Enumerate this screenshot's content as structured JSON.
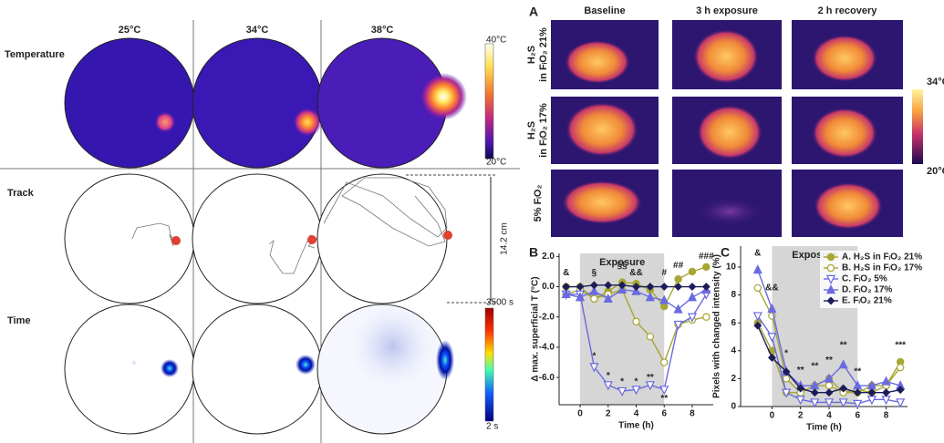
{
  "left": {
    "columns": [
      "25°C",
      "34°C",
      "38°C"
    ],
    "rows": [
      "Temperature",
      "Track",
      "Time"
    ],
    "temp_scale": {
      "max": "40°C",
      "min": "20°C"
    },
    "time_scale": {
      "max": "3500 s",
      "min": "2 s"
    },
    "scale_bar": "14.2 cm"
  },
  "panel_a": {
    "letter": "A",
    "columns": [
      "Baseline",
      "3 h exposure",
      "2 h recovery"
    ],
    "rows": [
      [
        "H₂S",
        "in FᵢO₂ 21%"
      ],
      [
        "H₂S",
        "in FᵢO₂ 17%"
      ],
      [
        "5% FᵢO₂"
      ]
    ],
    "scale": {
      "max": "34°C",
      "min": "20°C"
    }
  },
  "chart_data": [
    {
      "type": "line",
      "letter": "B",
      "ylabel": "Δ max. superficial T (°C)",
      "xlabel": "Time (h)",
      "shade": {
        "from": 0,
        "to": 6,
        "label": "Exposure"
      },
      "x": [
        -1,
        0,
        1,
        2,
        3,
        4,
        5,
        6,
        7,
        8,
        9
      ],
      "xlim": [
        -1.5,
        9.5
      ],
      "xticks": [
        0,
        2,
        4,
        6,
        8
      ],
      "ylim": [
        -7.8,
        2.2
      ],
      "yticks": [
        {
          "value": 2,
          "label": "2.0"
        },
        {
          "value": 0,
          "label": "0.0"
        },
        {
          "value": -2,
          "label": "-2.0"
        },
        {
          "value": -4,
          "label": "-4.0"
        },
        {
          "value": -6,
          "label": "-6.0"
        }
      ],
      "series": [
        {
          "color": "#a6a634",
          "marker": "circle",
          "values": [
            0,
            0,
            -0.8,
            -0.3,
            0.3,
            0.2,
            -0.2,
            -1.3,
            0.5,
            1,
            1.3
          ]
        },
        {
          "color": "#a6a634",
          "marker": "circle-open",
          "values": [
            -0.5,
            -0.2,
            -0.8,
            -0.5,
            -0.2,
            -2.3,
            -3.3,
            -5,
            -2.5,
            -2.2,
            -2
          ]
        },
        {
          "color": "#6a6ae0",
          "marker": "triangle-down-open",
          "values": [
            -0.5,
            -0.5,
            -5.3,
            -6.5,
            -6.9,
            -6.8,
            -6.5,
            -6.8,
            -2.5,
            -2,
            -0.5
          ]
        },
        {
          "color": "#6a6ae0",
          "marker": "triangle",
          "values": [
            -0.5,
            -0.7,
            -0.3,
            -0.8,
            -0.2,
            -0.3,
            -0.7,
            -0.9,
            -1.5,
            -0.7,
            -0.2
          ]
        },
        {
          "color": "#1c1c5a",
          "marker": "diamond",
          "values": [
            0,
            0,
            0.1,
            0.1,
            0.1,
            0,
            0,
            0,
            0,
            0,
            0
          ]
        }
      ],
      "annotations": [
        {
          "text": "&",
          "x": -1,
          "y": 0.9
        },
        {
          "text": "§",
          "x": 1,
          "y": 0.9
        },
        {
          "text": "§§",
          "x": 3,
          "y": 1.4
        },
        {
          "text": "&&",
          "x": 4,
          "y": 0.9
        },
        {
          "text": "#",
          "x": 6,
          "y": 0.9
        },
        {
          "text": "##",
          "x": 7,
          "y": 1.4
        },
        {
          "text": "###",
          "x": 9,
          "y": 2
        },
        {
          "text": "*",
          "x": 1,
          "y": -4.6
        },
        {
          "text": "*",
          "x": 2,
          "y": -5.9
        },
        {
          "text": "*",
          "x": 3,
          "y": -6.3
        },
        {
          "text": "*",
          "x": 4,
          "y": -6.3
        },
        {
          "text": "**",
          "x": 5,
          "y": -6
        },
        {
          "text": "**",
          "x": 6,
          "y": -7.4
        }
      ]
    },
    {
      "type": "line",
      "letter": "C",
      "ylabel": "Pixels with changed intensity (%)",
      "xlabel": "Time (h)",
      "shade": {
        "from": 0,
        "to": 6,
        "label": "Exposure"
      },
      "x": [
        -1,
        0,
        1,
        2,
        3,
        4,
        5,
        6,
        7,
        8,
        9
      ],
      "xlim": [
        -2.2,
        9.5
      ],
      "xticks": [
        0,
        2,
        4,
        6,
        8
      ],
      "ylim": [
        0,
        11.5
      ],
      "yticks": [
        0,
        2,
        4,
        6,
        8,
        10
      ],
      "series": [
        {
          "name": "A. H₂S in FᵢO₂ 21%",
          "color": "#a6a634",
          "marker": "circle",
          "values": [
            6,
            4,
            1,
            1,
            1.5,
            2,
            1,
            1,
            1.5,
            1.5,
            3.2
          ]
        },
        {
          "name": "B. H₂S in FᵢO₂ 17%",
          "color": "#a6a634",
          "marker": "circle-open",
          "values": [
            8.5,
            6.5,
            2,
            1,
            1.5,
            1.5,
            1,
            1.2,
            1,
            1.5,
            2.8
          ]
        },
        {
          "name": "C. FᵢO₂ 5%",
          "color": "#6a6ae0",
          "marker": "triangle-down-open",
          "values": [
            6.5,
            5,
            1,
            0.5,
            0.3,
            0.3,
            0.3,
            0.2,
            0.5,
            0.5,
            0.3
          ]
        },
        {
          "name": "D. FᵢO₂ 17%",
          "color": "#6a6ae0",
          "marker": "triangle",
          "values": [
            9.8,
            7,
            2.5,
            1.5,
            1.5,
            2,
            3,
            1.5,
            1.5,
            1.8,
            1.5
          ]
        },
        {
          "name": "E. FᵢO₂ 21%",
          "color": "#1c1c5a",
          "marker": "diamond",
          "values": [
            5.8,
            3.5,
            2.5,
            1.3,
            1,
            1,
            1.3,
            1,
            1,
            1,
            1.2
          ]
        }
      ],
      "annotations": [
        {
          "text": "&",
          "x": -1,
          "y": 11
        },
        {
          "text": "&&",
          "x": 0,
          "y": 8.5
        },
        {
          "text": "*",
          "x": 1,
          "y": 3.8
        },
        {
          "text": "**",
          "x": 2,
          "y": 2.6
        },
        {
          "text": "**",
          "x": 3,
          "y": 2.9
        },
        {
          "text": "**",
          "x": 4,
          "y": 3.3
        },
        {
          "text": "**",
          "x": 5,
          "y": 4.4
        },
        {
          "text": "**",
          "x": 6,
          "y": 2.5
        },
        {
          "text": "***",
          "x": 9,
          "y": 4.4
        }
      ]
    }
  ]
}
